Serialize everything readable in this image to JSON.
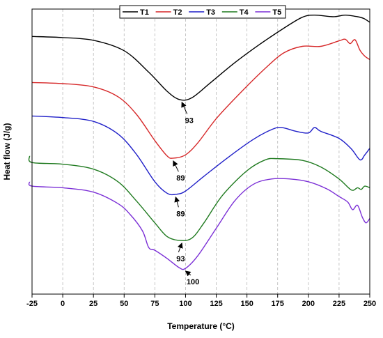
{
  "chart_data": {
    "type": "line",
    "xlabel": "Temperature (°C)",
    "ylabel": "Heat flow (J/g)",
    "xlim": [
      -25,
      250
    ],
    "xticks": [
      -25,
      0,
      25,
      50,
      75,
      100,
      125,
      150,
      175,
      200,
      225,
      250
    ],
    "y_axis_ticks": "none",
    "grid": "vertical dashed",
    "legend_position": "top-center",
    "series": [
      {
        "name": "T1",
        "color": "#000000",
        "points": [
          [
            -25,
            0.0
          ],
          [
            0,
            -0.2
          ],
          [
            25,
            -0.7
          ],
          [
            50,
            -2.6
          ],
          [
            70,
            -6.5
          ],
          [
            85,
            -10.0
          ],
          [
            95,
            -11.5
          ],
          [
            105,
            -11.2
          ],
          [
            120,
            -8.5
          ],
          [
            140,
            -4.8
          ],
          [
            160,
            -1.5
          ],
          [
            180,
            1.5
          ],
          [
            195,
            3.5
          ],
          [
            205,
            3.9
          ],
          [
            220,
            3.6
          ],
          [
            230,
            3.9
          ],
          [
            240,
            3.6
          ],
          [
            245,
            3.3
          ],
          [
            250,
            2.6
          ]
        ]
      },
      {
        "name": "T2",
        "color": "#d62728",
        "points": [
          [
            -25,
            -8.4
          ],
          [
            0,
            -8.6
          ],
          [
            25,
            -9.2
          ],
          [
            45,
            -11.0
          ],
          [
            60,
            -14.2
          ],
          [
            75,
            -19.0
          ],
          [
            85,
            -21.8
          ],
          [
            90,
            -22.2
          ],
          [
            100,
            -21.6
          ],
          [
            110,
            -19.4
          ],
          [
            125,
            -15.0
          ],
          [
            145,
            -10.2
          ],
          [
            165,
            -5.8
          ],
          [
            180,
            -3.0
          ],
          [
            195,
            -1.8
          ],
          [
            210,
            -1.8
          ],
          [
            225,
            -0.8
          ],
          [
            230,
            -0.5
          ],
          [
            234,
            -1.3
          ],
          [
            238,
            -0.6
          ],
          [
            242,
            -2.5
          ],
          [
            246,
            -3.6
          ],
          [
            250,
            -4.2
          ]
        ]
      },
      {
        "name": "T3",
        "color": "#1f1fc8",
        "points": [
          [
            -25,
            -14.5
          ],
          [
            0,
            -14.8
          ],
          [
            25,
            -15.5
          ],
          [
            45,
            -17.8
          ],
          [
            60,
            -21.5
          ],
          [
            75,
            -26.5
          ],
          [
            85,
            -28.6
          ],
          [
            92,
            -28.8
          ],
          [
            100,
            -28.2
          ],
          [
            115,
            -25.5
          ],
          [
            135,
            -22.0
          ],
          [
            155,
            -18.8
          ],
          [
            170,
            -17.0
          ],
          [
            178,
            -16.6
          ],
          [
            190,
            -17.3
          ],
          [
            200,
            -17.6
          ],
          [
            205,
            -16.6
          ],
          [
            210,
            -17.3
          ],
          [
            225,
            -18.6
          ],
          [
            235,
            -20.5
          ],
          [
            242,
            -22.5
          ],
          [
            246,
            -21.6
          ],
          [
            250,
            -20.4
          ]
        ]
      },
      {
        "name": "T4",
        "color": "#1f7a1f",
        "points": [
          [
            -27,
            -21.8
          ],
          [
            -25,
            -23.0
          ],
          [
            0,
            -23.3
          ],
          [
            25,
            -24.2
          ],
          [
            45,
            -26.5
          ],
          [
            60,
            -30.0
          ],
          [
            75,
            -34.0
          ],
          [
            85,
            -36.5
          ],
          [
            95,
            -37.2
          ],
          [
            105,
            -36.8
          ],
          [
            115,
            -34.0
          ],
          [
            130,
            -29.0
          ],
          [
            150,
            -24.5
          ],
          [
            165,
            -22.5
          ],
          [
            175,
            -22.3
          ],
          [
            195,
            -22.6
          ],
          [
            210,
            -23.8
          ],
          [
            225,
            -26.0
          ],
          [
            235,
            -28.0
          ],
          [
            240,
            -27.6
          ],
          [
            243,
            -27.9
          ],
          [
            246,
            -27.3
          ],
          [
            250,
            -27.6
          ]
        ]
      },
      {
        "name": "T5",
        "color": "#7b2fd6",
        "points": [
          [
            -27,
            -26.5
          ],
          [
            -25,
            -27.3
          ],
          [
            0,
            -27.6
          ],
          [
            25,
            -28.4
          ],
          [
            45,
            -30.5
          ],
          [
            55,
            -32.5
          ],
          [
            65,
            -35.5
          ],
          [
            70,
            -38.5
          ],
          [
            75,
            -39.0
          ],
          [
            85,
            -40.5
          ],
          [
            95,
            -42.2
          ],
          [
            100,
            -42.3
          ],
          [
            110,
            -40.0
          ],
          [
            125,
            -35.0
          ],
          [
            140,
            -30.0
          ],
          [
            155,
            -27.0
          ],
          [
            170,
            -26.0
          ],
          [
            185,
            -26.0
          ],
          [
            200,
            -26.5
          ],
          [
            215,
            -27.8
          ],
          [
            225,
            -29.2
          ],
          [
            232,
            -30.2
          ],
          [
            236,
            -31.6
          ],
          [
            240,
            -30.8
          ],
          [
            244,
            -33.0
          ],
          [
            247,
            -34.0
          ],
          [
            250,
            -33.2
          ]
        ]
      }
    ],
    "annotations": [
      {
        "text": "93",
        "peak_x": 97,
        "peak_y": -11.5,
        "label_x": 103,
        "label_y": -15.8
      },
      {
        "text": "89",
        "peak_x": 90,
        "peak_y": -22.2,
        "label_x": 96,
        "label_y": -26.3
      },
      {
        "text": "89",
        "peak_x": 92,
        "peak_y": -28.8,
        "label_x": 96,
        "label_y": -32.8
      },
      {
        "text": "93",
        "peak_x": 97,
        "peak_y": -37.2,
        "label_x": 96,
        "label_y": -41.0
      },
      {
        "text": "100",
        "peak_x": 100,
        "peak_y": -42.3,
        "label_x": 106,
        "label_y": -45.2
      }
    ]
  }
}
